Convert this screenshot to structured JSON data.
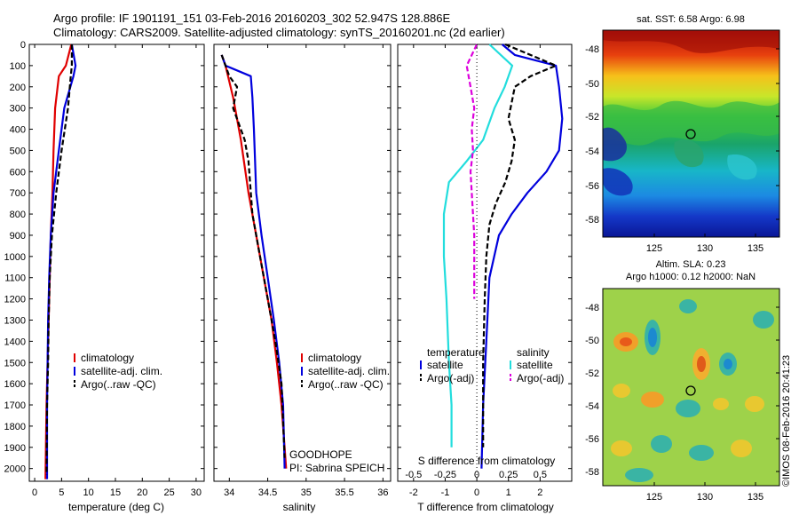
{
  "header": {
    "title_line1": "Argo profile: IF 1901191_151 03-Feb-2016 20160203_302 52.947S 128.886E",
    "title_line2": "Climatology: CARS2009. Satellite-adjusted climatology: synTS_20160201.nc (2d earlier)"
  },
  "colors": {
    "climatology": "#e00000",
    "satellite": "#0000dd",
    "argo": "#000000",
    "sat_salinity": "#22dddd",
    "argo_salinity": "#dd00dd"
  },
  "depth_axis": {
    "ticks": [
      0,
      100,
      200,
      300,
      400,
      500,
      600,
      700,
      800,
      900,
      1000,
      1100,
      1200,
      1300,
      1400,
      1500,
      1600,
      1700,
      1800,
      1900,
      2000
    ],
    "range": [
      0,
      2060
    ]
  },
  "panels": {
    "temperature": {
      "xlabel": "temperature (deg C)",
      "xticks": [
        0,
        5,
        10,
        15,
        20,
        25,
        30
      ],
      "xlim": [
        -1,
        31.5
      ]
    },
    "salinity": {
      "xlabel": "salinity",
      "xticks": [
        "34",
        "34.5",
        "35",
        "35.5",
        "36"
      ],
      "xlim": [
        33.8,
        36.1
      ],
      "note1": "GOODHOPE",
      "note2": "PI: Sabrina SPEICH"
    },
    "difference": {
      "xlabel": "T difference from climatology",
      "top_label": "S difference from climatology",
      "t_ticks": [
        "-2",
        "-1",
        "0",
        "1",
        "2"
      ],
      "t_lim": [
        -2.5,
        3.0
      ],
      "s_ticks": [
        "-0.5",
        "-0.25",
        "0",
        "0.25",
        "0.5"
      ],
      "s_lim": [
        -0.625,
        0.75
      ]
    }
  },
  "legend_main": [
    "climatology",
    "satellite-adj. clim.",
    "Argo(..raw -QC)"
  ],
  "legend_diff": {
    "temp_title": "temperature",
    "sal_title": "salinity",
    "t_sat": "satellite",
    "t_argo": "Argo(-adj)",
    "s_sat": "satellite",
    "s_argo": "Argo(-adj)"
  },
  "maps": {
    "sst": {
      "title": "sat. SST: 6.58 Argo: 6.98",
      "yticks": [
        "-48",
        "-50",
        "-52",
        "-54",
        "-56",
        "-58"
      ],
      "xticks": [
        "125",
        "130",
        "135"
      ]
    },
    "sla": {
      "title1": "Altim. SLA: 0.23",
      "title2": "Argo h1000: 0.12 h2000: NaN",
      "yticks": [
        "-48",
        "-50",
        "-52",
        "-54",
        "-56",
        "-58"
      ],
      "xticks": [
        "125",
        "130",
        "135"
      ]
    }
  },
  "stamp": "©IMOS 08-Feb-2016 20:41:23",
  "chart_data": [
    {
      "type": "line",
      "title": "",
      "xlabel": "temperature (deg C)",
      "ylabel": "",
      "xlim": [
        -1,
        31.5
      ],
      "ylim": [
        2060,
        0
      ],
      "series": [
        {
          "name": "climatology",
          "x": [
            6.8,
            5.8,
            4.5,
            3.8,
            3.5,
            3.3,
            3.0,
            2.8,
            2.6,
            2.4,
            2.2,
            2.0
          ],
          "y": [
            0,
            100,
            150,
            300,
            500,
            700,
            900,
            1100,
            1300,
            1500,
            1700,
            2050
          ]
        },
        {
          "name": "satellite-adj. clim.",
          "x": [
            6.9,
            7.6,
            7.2,
            5.5,
            4.5,
            3.5,
            3.0,
            2.7,
            2.5,
            2.4,
            2.3,
            2.3
          ],
          "y": [
            0,
            100,
            150,
            300,
            500,
            700,
            900,
            1100,
            1300,
            1500,
            1700,
            2050
          ]
        },
        {
          "name": "Argo(..raw -QC)",
          "x": [
            6.9,
            6.9,
            6.7,
            6.2,
            5.0,
            4.0,
            3.2,
            2.8,
            2.6,
            2.5,
            2.3,
            2.2
          ],
          "y": [
            0,
            100,
            150,
            300,
            500,
            700,
            900,
            1100,
            1300,
            1500,
            1700,
            2030
          ]
        }
      ]
    },
    {
      "type": "line",
      "title": "",
      "xlabel": "salinity",
      "ylabel": "",
      "xlim": [
        33.8,
        36.1
      ],
      "ylim": [
        2060,
        0
      ],
      "series": [
        {
          "name": "climatology",
          "x": [
            33.9,
            33.95,
            34.05,
            34.15,
            34.25,
            34.35,
            34.45,
            34.55,
            34.62,
            34.68,
            34.72,
            34.74
          ],
          "y": [
            50,
            100,
            250,
            450,
            700,
            900,
            1100,
            1300,
            1500,
            1700,
            1900,
            2000
          ]
        },
        {
          "name": "satellite-adj. clim.",
          "x": [
            33.9,
            33.95,
            34.28,
            34.3,
            34.32,
            34.35,
            34.42,
            34.5,
            34.58,
            34.65,
            34.7,
            34.72
          ],
          "y": [
            50,
            100,
            150,
            250,
            400,
            700,
            900,
            1100,
            1300,
            1500,
            1700,
            2000
          ]
        },
        {
          "name": "Argo(..raw -QC)",
          "x": [
            33.9,
            34.0,
            34.1,
            34.05,
            34.2,
            34.25,
            34.3,
            34.4,
            34.5,
            34.6,
            34.68,
            34.72
          ],
          "y": [
            50,
            150,
            200,
            300,
            450,
            550,
            800,
            1000,
            1200,
            1400,
            1600,
            1950
          ]
        }
      ]
    },
    {
      "type": "line",
      "title": "S difference from climatology",
      "xlabel": "T difference from climatology",
      "ylabel": "",
      "xlim": [
        -2.5,
        3.0
      ],
      "ylim": [
        2060,
        0
      ],
      "series": [
        {
          "name": "satellite",
          "x": [
            0.8,
            1.2,
            2.5,
            2.6,
            2.7,
            2.6,
            2.2,
            1.6,
            1.1,
            0.7,
            0.4,
            0.3,
            0.2,
            0.15
          ],
          "y": [
            0,
            50,
            100,
            200,
            350,
            500,
            600,
            700,
            800,
            900,
            1100,
            1400,
            1700,
            2000
          ]
        },
        {
          "name": "Argo(-adj)",
          "x": [
            0.9,
            2.5,
            1.7,
            1.2,
            1.0,
            1.2,
            1.1,
            0.9,
            0.6,
            0.4,
            0.3,
            0.25,
            0.2,
            0.2
          ],
          "y": [
            0,
            100,
            150,
            200,
            350,
            450,
            550,
            650,
            750,
            850,
            1000,
            1200,
            1500,
            1900
          ]
        },
        {
          "name": "satellite",
          "x": [
            0.1,
            0.28,
            0.22,
            0.14,
            0.05,
            -0.08,
            -0.22,
            -0.26,
            -0.26,
            -0.24,
            -0.22,
            -0.2,
            -0.2
          ],
          "y": [
            0,
            100,
            200,
            300,
            450,
            550,
            650,
            800,
            1000,
            1200,
            1500,
            1700,
            1900
          ]
        },
        {
          "name": "Argo(-adj)",
          "x": [
            0.0,
            -0.08,
            -0.05,
            -0.02,
            -0.04,
            -0.03,
            -0.05,
            -0.04,
            -0.03,
            -0.02,
            -0.02,
            -0.02
          ],
          "y": [
            0,
            100,
            200,
            300,
            400,
            500,
            600,
            700,
            800,
            900,
            1100,
            1200
          ]
        }
      ]
    }
  ]
}
